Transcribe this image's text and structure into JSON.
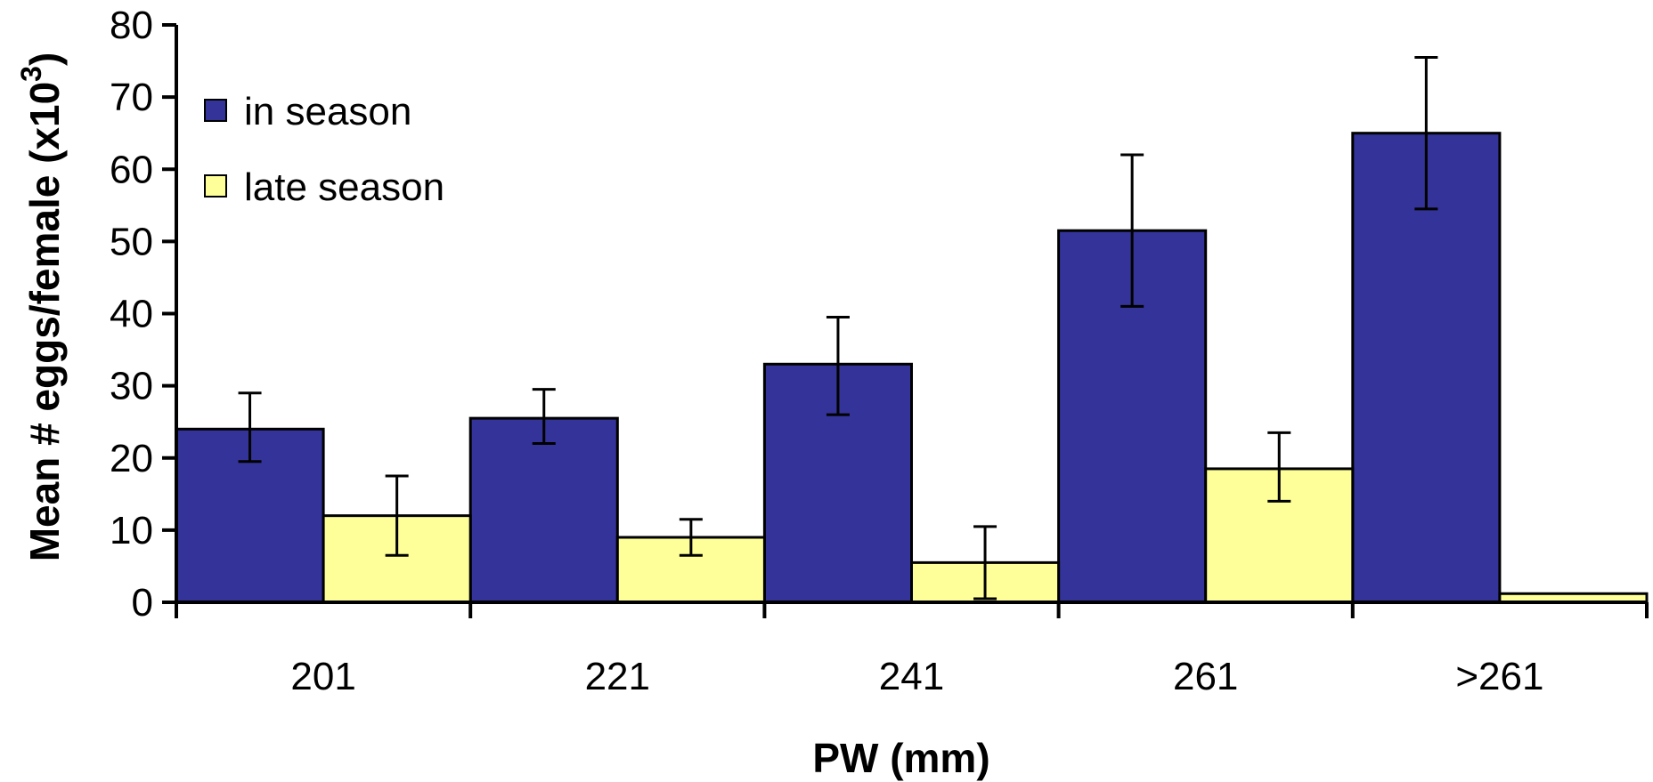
{
  "chart_data": {
    "type": "bar",
    "categories": [
      "201",
      "221",
      "241",
      "261",
      ">261"
    ],
    "series": [
      {
        "name": "in season",
        "color": "#333399",
        "values": [
          24,
          25.5,
          33,
          51.5,
          65
        ],
        "error_low": [
          19.5,
          22,
          26,
          41,
          54.5
        ],
        "error_high": [
          29,
          29.5,
          39.5,
          62,
          75.5
        ]
      },
      {
        "name": "late season",
        "color": "#FFFF99",
        "values": [
          12,
          9,
          5.5,
          18.5,
          1.2
        ],
        "error_low": [
          6.5,
          6.5,
          0.5,
          14,
          null
        ],
        "error_high": [
          17.5,
          11.5,
          10.5,
          23.5,
          null
        ]
      }
    ],
    "xlabel": "PW (mm)",
    "ylabel": "Mean # eggs/female (x10",
    "ylabel_superscript": "3",
    "ylabel_close": ")",
    "ylim": [
      0,
      80
    ],
    "yticks": [
      0,
      10,
      20,
      30,
      40,
      50,
      60,
      70,
      80
    ],
    "grid": false,
    "legend_position": "top-left"
  }
}
